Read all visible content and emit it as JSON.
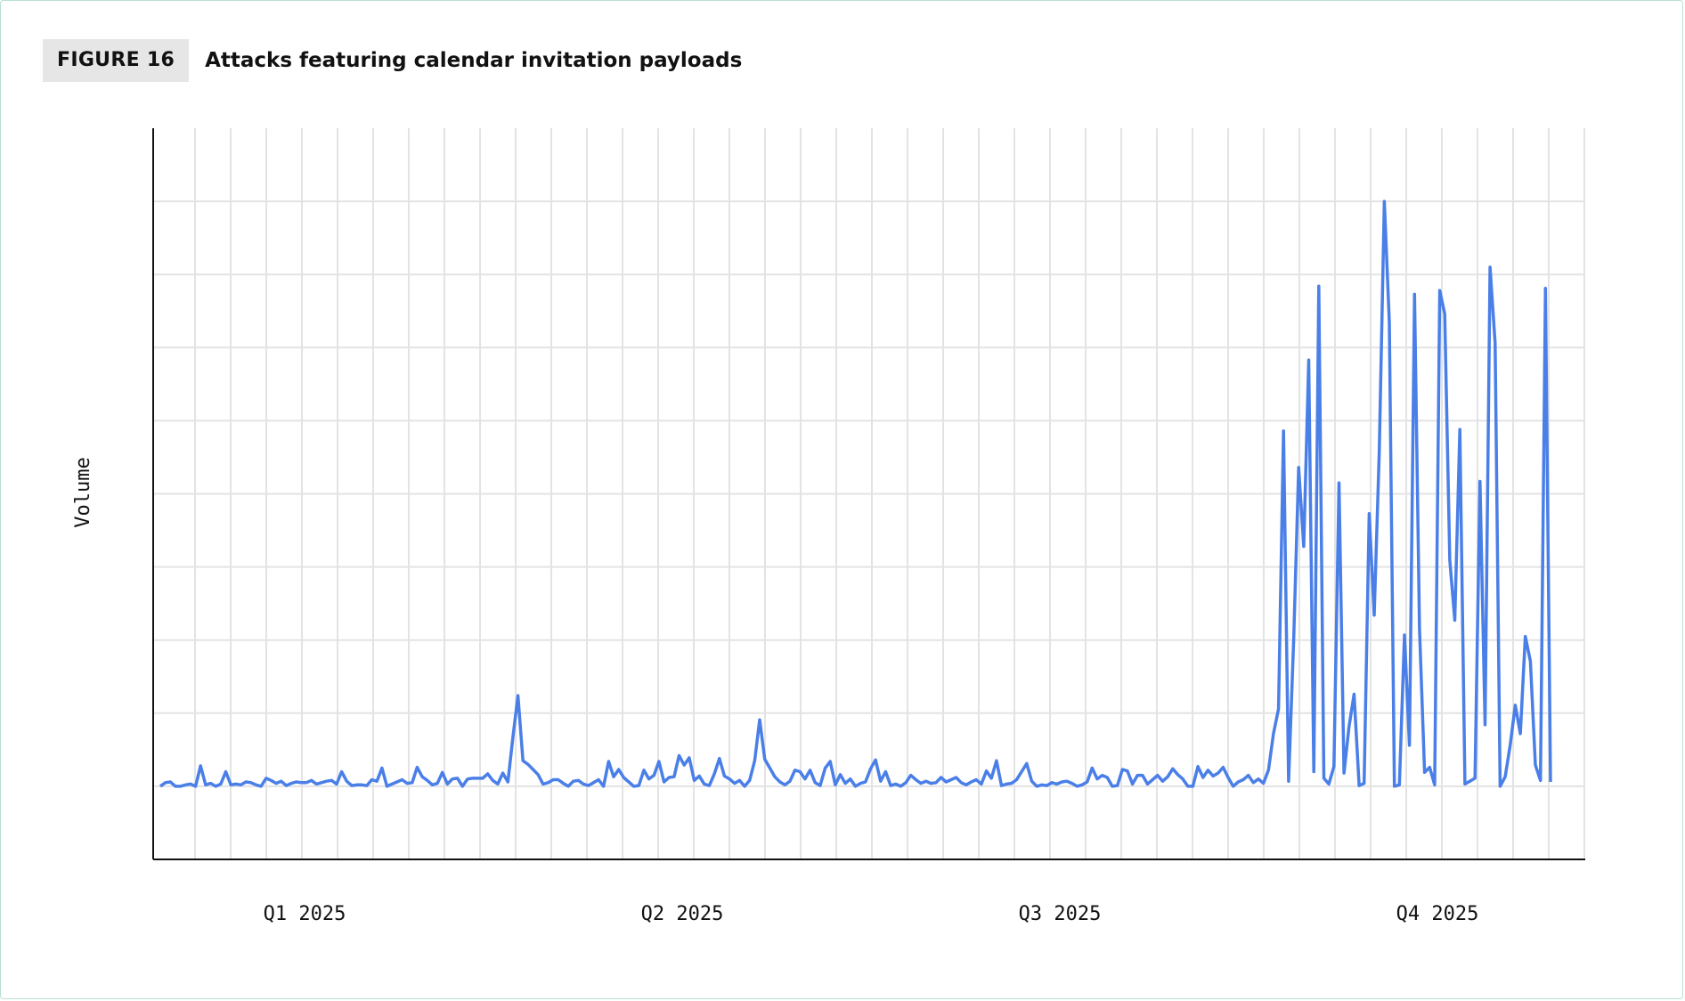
{
  "figure": {
    "badge": "FIGURE 16",
    "title": "Attacks featuring calendar invitation payloads"
  },
  "chart_data": {
    "type": "line",
    "title": "Attacks featuring calendar invitation payloads",
    "xlabel": "",
    "ylabel": "Volume",
    "grid": true,
    "legend": "none",
    "line_color": "#4a7fe8",
    "x_tick_labels": [
      "Q1 2025",
      "Q2 2025",
      "Q3 2025",
      "Q4 2025"
    ],
    "ylim": [
      -1,
      9
    ],
    "xlim": [
      0,
      365
    ],
    "series": [
      {
        "values": [
          0.0,
          0.05,
          0.06,
          0.0,
          0.0,
          0.02,
          0.03,
          0.0,
          0.28,
          0.02,
          0.04,
          0.0,
          0.03,
          0.2,
          0.02,
          0.03,
          0.02,
          0.06,
          0.05,
          0.02,
          0.0,
          0.11,
          0.08,
          0.04,
          0.07,
          0.01,
          0.04,
          0.06,
          0.05,
          0.05,
          0.08,
          0.03,
          0.05,
          0.07,
          0.08,
          0.03,
          0.2,
          0.07,
          0.01,
          0.02,
          0.02,
          0.01,
          0.09,
          0.07,
          0.25,
          0.0,
          0.03,
          0.06,
          0.09,
          0.04,
          0.05,
          0.26,
          0.13,
          0.08,
          0.02,
          0.04,
          0.19,
          0.03,
          0.1,
          0.11,
          0.0,
          0.1,
          0.11,
          0.11,
          0.11,
          0.17,
          0.08,
          0.03,
          0.18,
          0.06,
          0.67,
          1.24,
          0.35,
          0.3,
          0.23,
          0.16,
          0.03,
          0.05,
          0.09,
          0.09,
          0.04,
          0.0,
          0.07,
          0.08,
          0.03,
          0.01,
          0.05,
          0.09,
          0.0,
          0.34,
          0.13,
          0.23,
          0.12,
          0.06,
          0.0,
          0.01,
          0.22,
          0.1,
          0.15,
          0.34,
          0.06,
          0.12,
          0.13,
          0.42,
          0.29,
          0.39,
          0.08,
          0.14,
          0.03,
          0.01,
          0.17,
          0.38,
          0.14,
          0.1,
          0.04,
          0.08,
          0.0,
          0.08,
          0.35,
          0.91,
          0.37,
          0.25,
          0.13,
          0.06,
          0.02,
          0.07,
          0.22,
          0.2,
          0.1,
          0.22,
          0.05,
          0.01,
          0.25,
          0.34,
          0.02,
          0.16,
          0.04,
          0.1,
          0.0,
          0.04,
          0.06,
          0.24,
          0.36,
          0.07,
          0.2,
          0.01,
          0.03,
          0.0,
          0.05,
          0.15,
          0.09,
          0.04,
          0.07,
          0.04,
          0.05,
          0.12,
          0.06,
          0.09,
          0.12,
          0.05,
          0.02,
          0.06,
          0.09,
          0.03,
          0.21,
          0.11,
          0.35,
          0.01,
          0.03,
          0.04,
          0.09,
          0.2,
          0.31,
          0.07,
          0.0,
          0.02,
          0.01,
          0.05,
          0.03,
          0.06,
          0.07,
          0.04,
          0.0,
          0.02,
          0.06,
          0.25,
          0.1,
          0.15,
          0.12,
          0.0,
          0.01,
          0.23,
          0.21,
          0.03,
          0.15,
          0.15,
          0.03,
          0.09,
          0.15,
          0.07,
          0.13,
          0.24,
          0.16,
          0.1,
          0.0,
          0.0,
          0.27,
          0.12,
          0.22,
          0.14,
          0.18,
          0.26,
          0.12,
          0.0,
          0.06,
          0.09,
          0.15,
          0.05,
          0.1,
          0.04,
          0.22,
          0.72,
          1.06,
          4.86,
          0.07,
          2.0,
          4.36,
          3.28,
          5.83,
          0.2,
          6.84,
          0.11,
          0.03,
          0.27,
          4.15,
          0.18,
          0.82,
          1.26,
          0.01,
          0.04,
          3.73,
          2.34,
          4.57,
          8.0,
          6.35,
          0.0,
          0.02,
          2.07,
          0.56,
          6.73,
          2.15,
          0.19,
          0.26,
          0.02,
          6.78,
          6.46,
          3.09,
          2.27,
          4.88,
          0.03,
          0.07,
          0.11,
          4.17,
          0.84,
          7.1,
          6.06,
          0.0,
          0.13,
          0.57,
          1.11,
          0.72,
          2.05,
          1.71,
          0.29,
          0.08,
          6.81,
          0.06
        ]
      }
    ]
  }
}
